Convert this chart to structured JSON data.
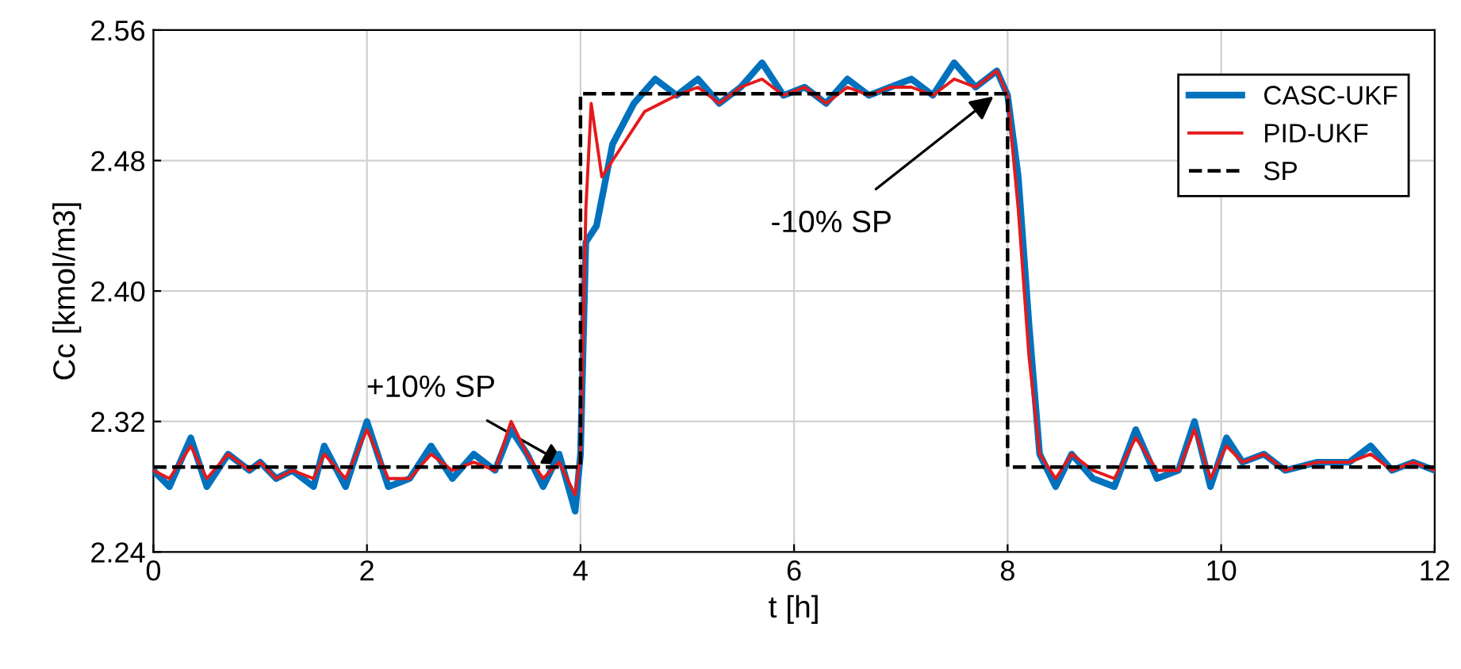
{
  "chart_data": {
    "type": "line",
    "xlabel": "t [h]",
    "ylabel": "Cc [kmol/m3]",
    "xlim": [
      0,
      12
    ],
    "ylim": [
      2.24,
      2.56
    ],
    "xticks": [
      0,
      2,
      4,
      6,
      8,
      10,
      12
    ],
    "yticks": [
      2.24,
      2.32,
      {
        "value": 2.4,
        "label": "2.40"
      },
      2.48,
      2.56
    ],
    "grid": true,
    "legend": "top right",
    "line_style": "solid",
    "marker": "none",
    "series": [
      {
        "name": "CASC-UKF",
        "color": "#0072bd",
        "x": [
          0,
          0.15,
          0.35,
          0.5,
          0.7,
          0.9,
          1.0,
          1.15,
          1.3,
          1.5,
          1.6,
          1.8,
          2.0,
          2.2,
          2.4,
          2.6,
          2.8,
          3.0,
          3.2,
          3.35,
          3.5,
          3.65,
          3.8,
          3.95,
          4.0,
          4.05,
          4.15,
          4.3,
          4.5,
          4.7,
          4.9,
          5.1,
          5.3,
          5.5,
          5.7,
          5.9,
          6.1,
          6.3,
          6.5,
          6.7,
          6.9,
          7.1,
          7.3,
          7.5,
          7.7,
          7.9,
          8.0,
          8.1,
          8.2,
          8.3,
          8.45,
          8.6,
          8.8,
          9.0,
          9.2,
          9.4,
          9.6,
          9.75,
          9.9,
          10.05,
          10.2,
          10.4,
          10.6,
          10.9,
          11.2,
          11.4,
          11.6,
          11.8,
          12
        ],
        "values": [
          2.29,
          2.28,
          2.31,
          2.28,
          2.3,
          2.29,
          2.295,
          2.285,
          2.29,
          2.28,
          2.305,
          2.28,
          2.32,
          2.28,
          2.285,
          2.305,
          2.285,
          2.3,
          2.29,
          2.315,
          2.3,
          2.28,
          2.3,
          2.265,
          2.3,
          2.43,
          2.44,
          2.49,
          2.515,
          2.53,
          2.52,
          2.53,
          2.515,
          2.525,
          2.54,
          2.52,
          2.525,
          2.515,
          2.53,
          2.52,
          2.525,
          2.53,
          2.52,
          2.54,
          2.525,
          2.535,
          2.52,
          2.47,
          2.38,
          2.3,
          2.28,
          2.3,
          2.285,
          2.28,
          2.315,
          2.285,
          2.29,
          2.32,
          2.28,
          2.31,
          2.295,
          2.3,
          2.29,
          2.295,
          2.295,
          2.305,
          2.29,
          2.295,
          2.29
        ]
      },
      {
        "name": "PID-UKF",
        "color": "#e41a1c",
        "x": [
          0,
          0.15,
          0.35,
          0.5,
          0.7,
          0.9,
          1.0,
          1.15,
          1.3,
          1.5,
          1.6,
          1.8,
          2.0,
          2.2,
          2.4,
          2.6,
          2.8,
          3.0,
          3.2,
          3.35,
          3.5,
          3.65,
          3.8,
          3.95,
          4.0,
          4.05,
          4.1,
          4.2,
          4.4,
          4.6,
          4.9,
          5.1,
          5.3,
          5.5,
          5.7,
          5.9,
          6.1,
          6.3,
          6.5,
          6.7,
          6.9,
          7.1,
          7.3,
          7.5,
          7.7,
          7.9,
          8.0,
          8.1,
          8.2,
          8.3,
          8.45,
          8.6,
          8.8,
          9.0,
          9.2,
          9.4,
          9.6,
          9.75,
          9.9,
          10.05,
          10.2,
          10.4,
          10.6,
          10.9,
          11.2,
          11.4,
          11.6,
          11.8,
          12
        ],
        "values": [
          2.29,
          2.285,
          2.305,
          2.285,
          2.3,
          2.29,
          2.295,
          2.285,
          2.29,
          2.285,
          2.3,
          2.285,
          2.315,
          2.285,
          2.285,
          2.3,
          2.29,
          2.295,
          2.29,
          2.32,
          2.3,
          2.285,
          2.295,
          2.275,
          2.3,
          2.45,
          2.515,
          2.47,
          2.49,
          2.51,
          2.52,
          2.525,
          2.515,
          2.525,
          2.53,
          2.52,
          2.525,
          2.515,
          2.525,
          2.52,
          2.525,
          2.525,
          2.52,
          2.53,
          2.525,
          2.535,
          2.52,
          2.45,
          2.36,
          2.3,
          2.285,
          2.3,
          2.29,
          2.285,
          2.31,
          2.29,
          2.29,
          2.315,
          2.285,
          2.305,
          2.295,
          2.3,
          2.29,
          2.295,
          2.295,
          2.3,
          2.29,
          2.295,
          2.29
        ]
      },
      {
        "name": "SP",
        "color": "#000000",
        "line_style": "dashed",
        "x": [
          0,
          4,
          4,
          8,
          8,
          12
        ],
        "values": [
          2.292,
          2.292,
          2.521,
          2.521,
          2.292,
          2.292
        ]
      }
    ],
    "annotations": [
      {
        "text": "+10% SP",
        "x": 3.9,
        "y": 2.292
      },
      {
        "text": "-10% SP",
        "x": 7.9,
        "y": 2.521
      }
    ]
  }
}
